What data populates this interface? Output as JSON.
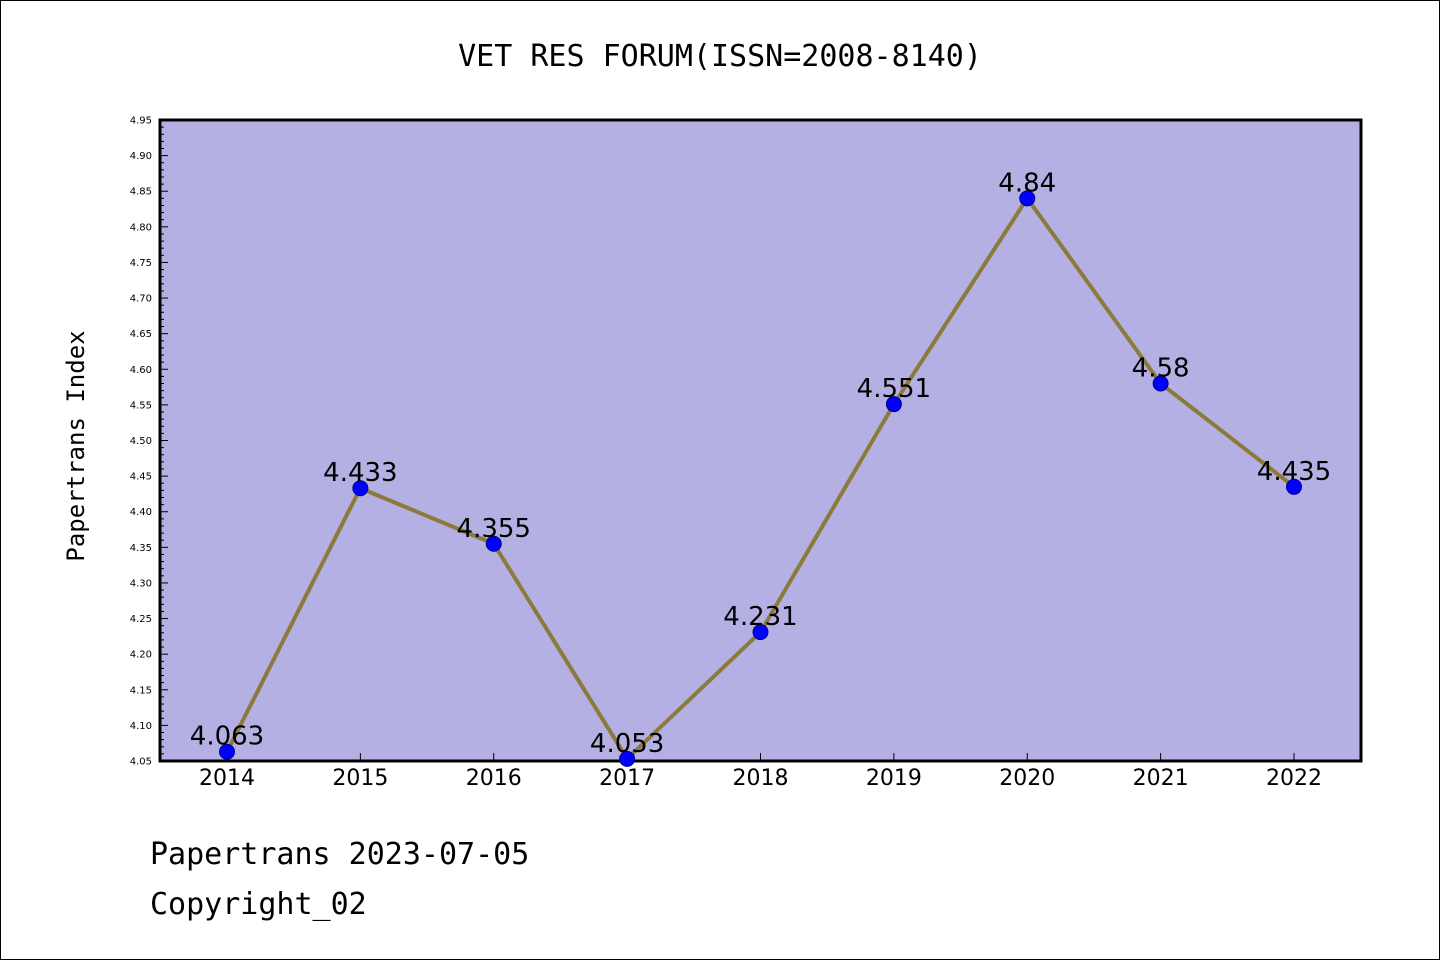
{
  "chart_data": {
    "type": "line",
    "title": "VET RES FORUM(ISSN=2008-8140)",
    "ylabel": "Papertrans Index",
    "xlabel": "",
    "categories": [
      "2014",
      "2015",
      "2016",
      "2017",
      "2018",
      "2019",
      "2020",
      "2021",
      "2022"
    ],
    "series": [
      {
        "values": [
          4.063,
          4.433,
          4.355,
          4.053,
          4.231,
          4.551,
          4.84,
          4.58,
          4.435
        ],
        "data_labels": [
          "4.063",
          "4.433",
          "4.355",
          "4.053",
          "4.231",
          "4.551",
          "4.84",
          "4.58",
          "4.435"
        ]
      }
    ],
    "ylim": [
      4.05,
      4.95
    ],
    "yticks": [
      "4.05",
      "4.10",
      "4.15",
      "4.20",
      "4.25",
      "4.30",
      "4.35",
      "4.40",
      "4.45",
      "4.50",
      "4.55",
      "4.60",
      "4.65",
      "4.70",
      "4.75",
      "4.80",
      "4.85",
      "4.90",
      "4.95"
    ],
    "grid": false,
    "colors": {
      "plot_background": "#b5b0e3",
      "line": "#8c7a3a",
      "marker": "#0000ff",
      "marker_edge": "#00008b"
    }
  },
  "footer": {
    "line1": "Papertrans 2023-07-05",
    "line2": "Copyright_02"
  }
}
